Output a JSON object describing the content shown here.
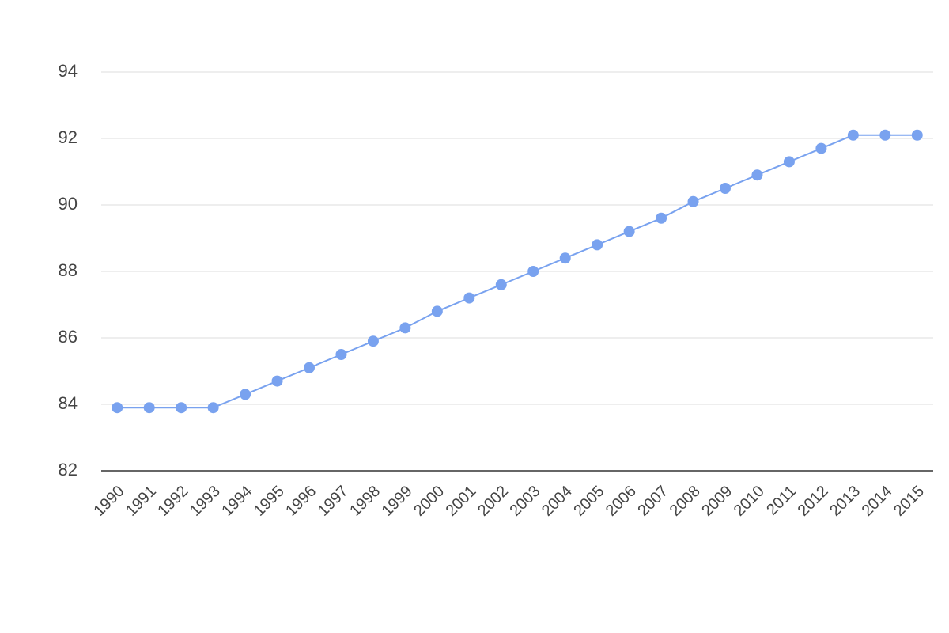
{
  "chart_data": {
    "type": "line",
    "categories": [
      "1990",
      "1991",
      "1992",
      "1993",
      "1994",
      "1995",
      "1996",
      "1997",
      "1998",
      "1999",
      "2000",
      "2001",
      "2002",
      "2003",
      "2004",
      "2005",
      "2006",
      "2007",
      "2008",
      "2009",
      "2010",
      "2011",
      "2012",
      "2013",
      "2014",
      "2015"
    ],
    "series": [
      {
        "color": "#79a2ef",
        "values": [
          83.9,
          83.9,
          83.9,
          83.9,
          84.3,
          84.7,
          85.1,
          85.5,
          85.9,
          86.3,
          86.8,
          87.2,
          87.6,
          88.0,
          88.4,
          88.8,
          89.2,
          89.6,
          90.1,
          90.5,
          90.9,
          91.3,
          91.7,
          92.1,
          92.1,
          92.1
        ]
      }
    ],
    "ylim": [
      82,
      94
    ],
    "yticks": [
      82,
      84,
      86,
      88,
      90,
      92,
      94
    ],
    "grid": true
  }
}
